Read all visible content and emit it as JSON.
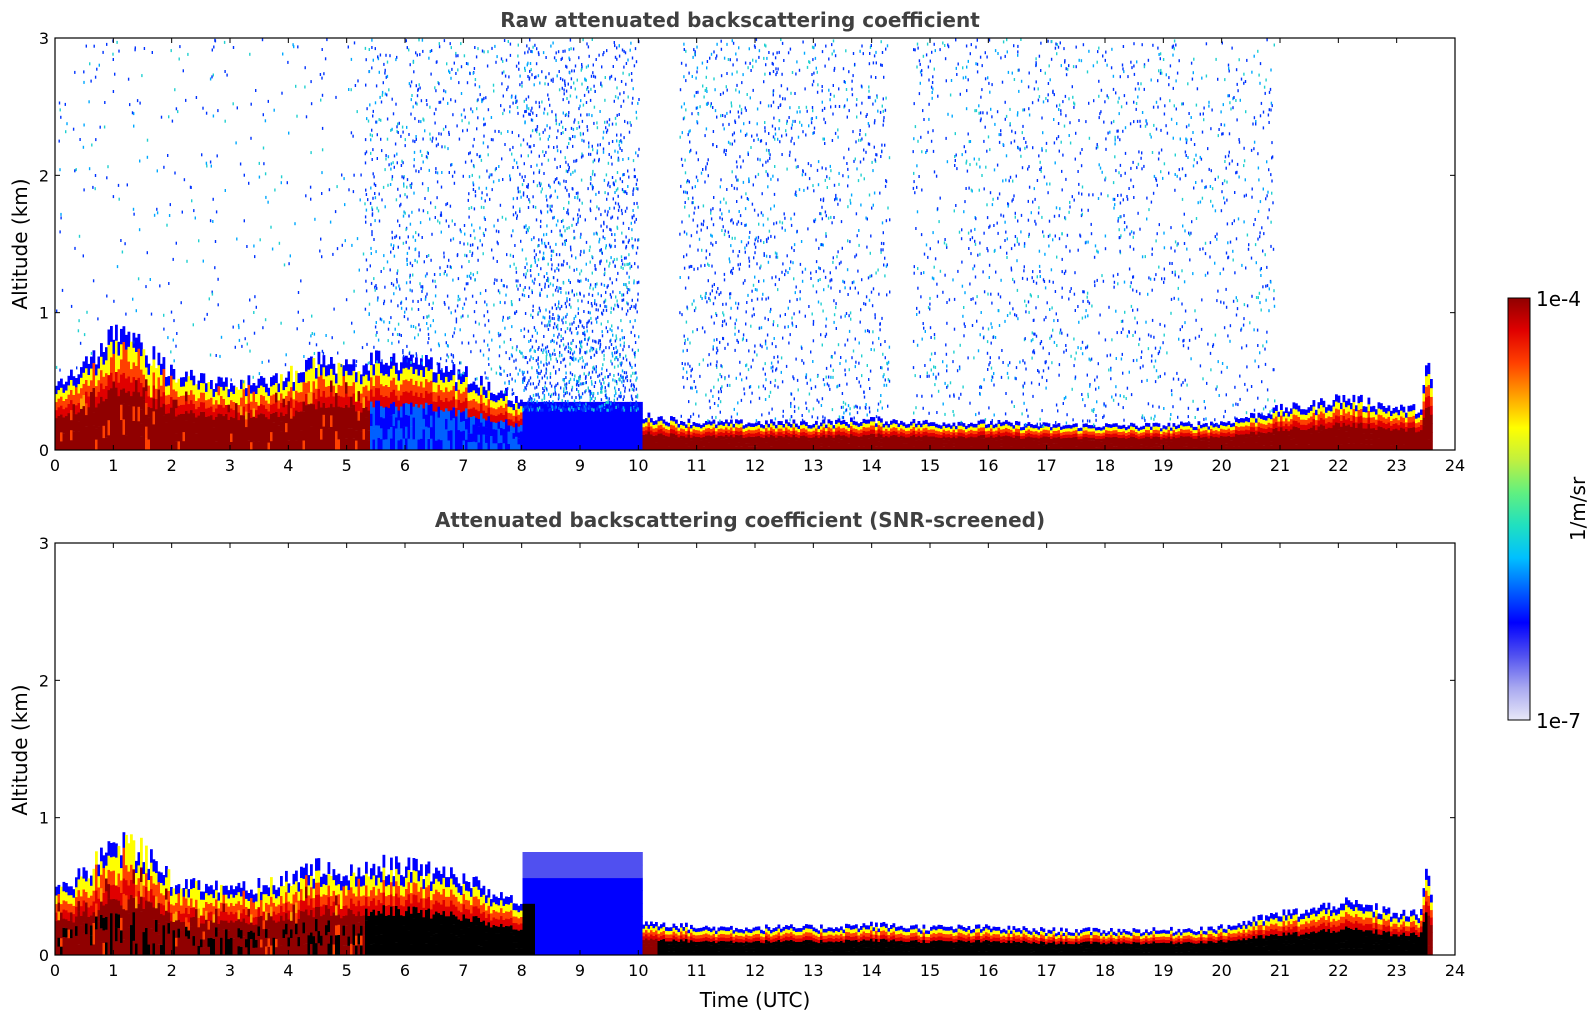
{
  "chart_data": [
    {
      "type": "heatmap",
      "title": "Raw attenuated backscattering coefficient",
      "xlabel": "",
      "ylabel": "Altitude (km)",
      "xlim": [
        0,
        24
      ],
      "ylim": [
        0,
        3
      ],
      "xticks": [
        0,
        1,
        2,
        3,
        4,
        5,
        6,
        7,
        8,
        9,
        10,
        11,
        12,
        13,
        14,
        15,
        16,
        17,
        18,
        19,
        20,
        21,
        22,
        23,
        24
      ],
      "yticks": [
        0,
        1,
        2,
        3
      ],
      "profile": {
        "description_units": "time in UTC hours, altitude in km",
        "layer_top_km": [
          [
            0,
            0.45
          ],
          [
            0.5,
            0.6
          ],
          [
            1,
            0.85
          ],
          [
            1.5,
            0.75
          ],
          [
            2,
            0.55
          ],
          [
            2.5,
            0.5
          ],
          [
            3,
            0.5
          ],
          [
            3.5,
            0.5
          ],
          [
            4,
            0.55
          ],
          [
            4.5,
            0.65
          ],
          [
            5,
            0.6
          ],
          [
            5.5,
            0.65
          ],
          [
            6,
            0.65
          ],
          [
            6.5,
            0.6
          ],
          [
            7,
            0.55
          ],
          [
            7.5,
            0.45
          ],
          [
            8,
            0.35
          ],
          [
            8.2,
            0.3
          ],
          [
            10,
            0.25
          ],
          [
            10.05,
            0.25
          ],
          [
            11,
            0.2
          ],
          [
            12,
            0.2
          ],
          [
            13,
            0.2
          ],
          [
            14,
            0.22
          ],
          [
            15,
            0.2
          ],
          [
            16,
            0.2
          ],
          [
            17,
            0.18
          ],
          [
            18,
            0.18
          ],
          [
            19,
            0.18
          ],
          [
            20,
            0.2
          ],
          [
            20.5,
            0.25
          ],
          [
            21,
            0.3
          ],
          [
            21.5,
            0.32
          ],
          [
            22,
            0.38
          ],
          [
            22.5,
            0.35
          ],
          [
            23,
            0.3
          ],
          [
            23.4,
            0.3
          ],
          [
            23.5,
            0.65
          ],
          [
            23.6,
            0.4
          ]
        ],
        "noise_region_times": [
          [
            0,
            5.3
          ],
          [
            5.3,
            8
          ],
          [
            8,
            10
          ],
          [
            10.7,
            14.3
          ],
          [
            14.7,
            20.9
          ]
        ],
        "data_end_time": 23.6
      },
      "raw_noise": true
    },
    {
      "type": "heatmap",
      "title": "Attenuated backscattering coefficient (SNR-screened)",
      "xlabel": "Time (UTC)",
      "ylabel": "Altitude (km)",
      "xlim": [
        0,
        24
      ],
      "ylim": [
        0,
        3
      ],
      "xticks": [
        0,
        1,
        2,
        3,
        4,
        5,
        6,
        7,
        8,
        9,
        10,
        11,
        12,
        13,
        14,
        15,
        16,
        17,
        18,
        19,
        20,
        21,
        22,
        23,
        24
      ],
      "yticks": [
        0,
        1,
        2,
        3
      ],
      "raw_noise": false
    }
  ],
  "colorbar": {
    "label": "1/m/sr",
    "max_label": "1e-4",
    "min_label": "1e-7",
    "colormap": [
      "#e8e8f8",
      "#a8a8f0",
      "#5050f0",
      "#0000ff",
      "#0060ff",
      "#00c0ff",
      "#20e0c0",
      "#60f080",
      "#c0f040",
      "#ffff00",
      "#ffa000",
      "#ff4000",
      "#e00000",
      "#900000"
    ]
  }
}
